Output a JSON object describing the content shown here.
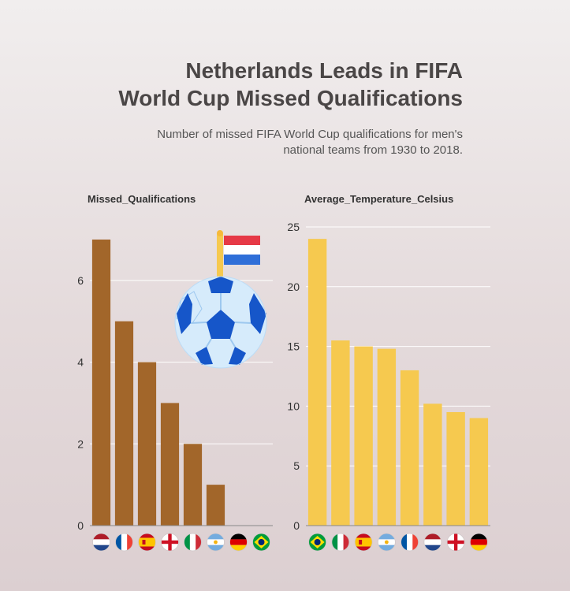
{
  "title_lines": [
    "Netherlands Leads in FIFA",
    "World Cup Missed Qualifications"
  ],
  "subtitle_lines": [
    "Number of missed FIFA World Cup qualifications for men's",
    "national teams from 1930 to 2018."
  ],
  "chart_data": [
    {
      "type": "bar",
      "title": "Missed_Qualifications",
      "categories": [
        "Netherlands",
        "France",
        "Spain",
        "England",
        "Italy",
        "Argentina",
        "Germany",
        "Brazil"
      ],
      "values": [
        7,
        5,
        4,
        3,
        2,
        1,
        0,
        0
      ],
      "ylim": [
        0,
        7
      ],
      "yticks": [
        0,
        2,
        4,
        6
      ],
      "color": "#a2662a",
      "grid": true
    },
    {
      "type": "bar",
      "title": "Average_Temperature_Celsius",
      "categories": [
        "Brazil",
        "Italy",
        "Spain",
        "Argentina",
        "France",
        "Netherlands",
        "England",
        "Germany"
      ],
      "values": [
        24,
        15.5,
        15,
        14.8,
        13,
        10.2,
        9.5,
        9
      ],
      "ylim": [
        0,
        25
      ],
      "yticks": [
        0,
        5,
        10,
        15,
        20,
        25
      ],
      "color": "#f6c94f",
      "grid": true
    }
  ],
  "colors": {
    "title": "#4a4646",
    "grid": "#ffffff",
    "ball_blue": "#1656c9",
    "ball_light": "#d6ebfb"
  },
  "icons": [
    "netherlands-flag-icon",
    "soccer-ball-icon"
  ]
}
